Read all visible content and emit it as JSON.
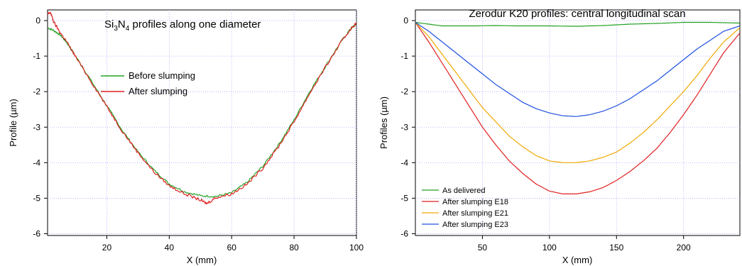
{
  "chart_data": [
    {
      "type": "line",
      "title_main": "Si",
      "title_sub1": "3",
      "title_mid": "N",
      "title_sub2": "4",
      "title_tail": " profiles along one diameter",
      "xlabel": "X (mm)",
      "ylabel": "Profile (µm)",
      "xlim": [
        1,
        100
      ],
      "ylim": [
        -6.05,
        0.3
      ],
      "xticks": [
        20,
        40,
        60,
        80,
        100
      ],
      "yticks": [
        0,
        -1,
        -2,
        -3,
        -4,
        -5,
        -6
      ],
      "grid": true,
      "legend": "upper-left",
      "series": [
        {
          "name": "Before slumping",
          "color": "#22a022",
          "x": [
            1,
            3,
            5,
            7,
            10,
            15,
            20,
            25,
            30,
            35,
            40,
            45,
            50,
            55,
            60,
            65,
            70,
            75,
            80,
            85,
            90,
            95,
            98,
            100
          ],
          "y": [
            -0.2,
            -0.28,
            -0.4,
            -0.6,
            -1.0,
            -1.7,
            -2.4,
            -3.1,
            -3.7,
            -4.2,
            -4.6,
            -4.82,
            -4.93,
            -4.95,
            -4.85,
            -4.55,
            -4.1,
            -3.5,
            -2.8,
            -2.0,
            -1.3,
            -0.6,
            -0.25,
            -0.08
          ]
        },
        {
          "name": "After slumping",
          "color": "#e02020",
          "x": [
            1,
            2,
            3,
            5,
            7,
            10,
            15,
            20,
            25,
            30,
            35,
            40,
            45,
            50,
            52,
            55,
            60,
            65,
            70,
            75,
            80,
            85,
            90,
            95,
            98,
            100
          ],
          "y": [
            0.18,
            0.22,
            -0.05,
            -0.33,
            -0.58,
            -1.02,
            -1.72,
            -2.42,
            -3.12,
            -3.72,
            -4.25,
            -4.65,
            -4.88,
            -5.05,
            -5.15,
            -4.98,
            -4.88,
            -4.6,
            -4.15,
            -3.55,
            -2.85,
            -2.05,
            -1.32,
            -0.62,
            -0.25,
            -0.07
          ]
        }
      ]
    },
    {
      "type": "line",
      "title": "Zerodur K20 profiles:  central longitudinal scan",
      "xlabel": "X (mm)",
      "ylabel": "Profiles (µm)",
      "xlim": [
        0,
        242
      ],
      "ylim": [
        -6.05,
        0.3
      ],
      "xticks": [
        50,
        100,
        150,
        200
      ],
      "yticks": [
        0,
        -1,
        -2,
        -3,
        -4,
        -5,
        -6
      ],
      "grid": true,
      "legend": "lower-left",
      "series": [
        {
          "name": "As delivered",
          "color": "#22a022",
          "x": [
            0,
            10,
            20,
            40,
            60,
            80,
            100,
            120,
            140,
            160,
            180,
            200,
            220,
            242
          ],
          "y": [
            -0.05,
            -0.1,
            -0.15,
            -0.15,
            -0.14,
            -0.15,
            -0.15,
            -0.16,
            -0.14,
            -0.1,
            -0.08,
            -0.05,
            -0.05,
            -0.07
          ]
        },
        {
          "name": "After slumping E18",
          "color": "#e02020",
          "x": [
            0,
            10,
            20,
            30,
            40,
            50,
            60,
            70,
            80,
            90,
            100,
            110,
            120,
            130,
            140,
            150,
            160,
            170,
            180,
            190,
            200,
            210,
            220,
            230,
            242
          ],
          "y": [
            -0.05,
            -0.6,
            -1.2,
            -1.8,
            -2.4,
            -3.0,
            -3.5,
            -3.95,
            -4.3,
            -4.6,
            -4.8,
            -4.88,
            -4.88,
            -4.82,
            -4.7,
            -4.5,
            -4.25,
            -3.95,
            -3.6,
            -3.15,
            -2.65,
            -2.1,
            -1.5,
            -0.9,
            -0.35
          ]
        },
        {
          "name": "After slumping E21",
          "color": "#f0a800",
          "x": [
            0,
            10,
            20,
            30,
            40,
            50,
            60,
            70,
            80,
            90,
            100,
            110,
            120,
            130,
            140,
            150,
            160,
            170,
            180,
            190,
            200,
            210,
            220,
            230,
            242
          ],
          "y": [
            -0.05,
            -0.45,
            -0.95,
            -1.45,
            -1.95,
            -2.45,
            -2.85,
            -3.25,
            -3.55,
            -3.8,
            -3.95,
            -4.0,
            -4.0,
            -3.95,
            -3.85,
            -3.7,
            -3.45,
            -3.15,
            -2.8,
            -2.4,
            -2.0,
            -1.55,
            -1.05,
            -0.6,
            -0.2
          ]
        },
        {
          "name": "After slumping  E23",
          "color": "#2050e0",
          "x": [
            0,
            10,
            20,
            30,
            40,
            50,
            60,
            70,
            80,
            90,
            100,
            110,
            120,
            130,
            140,
            150,
            160,
            170,
            180,
            190,
            200,
            210,
            220,
            230,
            242
          ],
          "y": [
            -0.05,
            -0.3,
            -0.6,
            -0.9,
            -1.2,
            -1.5,
            -1.8,
            -2.05,
            -2.3,
            -2.48,
            -2.6,
            -2.68,
            -2.7,
            -2.65,
            -2.55,
            -2.4,
            -2.2,
            -1.95,
            -1.7,
            -1.4,
            -1.1,
            -0.8,
            -0.55,
            -0.3,
            -0.15
          ]
        }
      ]
    }
  ]
}
